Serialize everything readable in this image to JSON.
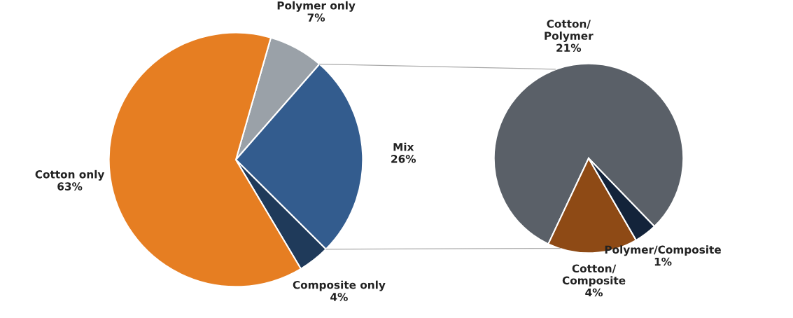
{
  "chart_data": [
    {
      "type": "pie",
      "categories": [
        "Polymer only",
        "Mix",
        "Composite only",
        "Cotton only"
      ],
      "values": [
        7,
        26,
        4,
        63
      ],
      "colors": [
        "#9aa1a8",
        "#335c8e",
        "#1f3a5a",
        "#e67e22"
      ],
      "value_labels": [
        "7%",
        "26%",
        "4%",
        "63%"
      ]
    },
    {
      "type": "pie",
      "categories": [
        "Cotton/\nPolymer",
        "Cotton/\nComposite",
        "Polymer/Composite"
      ],
      "values": [
        21,
        4,
        1
      ],
      "colors": [
        "#5a6068",
        "#8e4a15",
        "#13233a"
      ],
      "value_labels": [
        "21%",
        "4%",
        "1%"
      ]
    }
  ]
}
